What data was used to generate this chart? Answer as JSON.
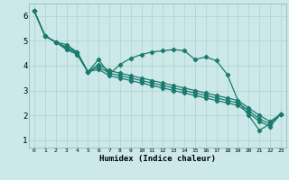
{
  "xlabel": "Humidex (Indice chaleur)",
  "bg_color": "#cce8e8",
  "line_color": "#1a7a6e",
  "grid_color": "#aad4cc",
  "xlim": [
    -0.5,
    23.5
  ],
  "ylim": [
    0.7,
    6.5
  ],
  "xticks": [
    0,
    1,
    2,
    3,
    4,
    5,
    6,
    7,
    8,
    9,
    10,
    11,
    12,
    13,
    14,
    15,
    16,
    17,
    18,
    19,
    20,
    21,
    22,
    23
  ],
  "yticks": [
    1,
    2,
    3,
    4,
    5,
    6
  ],
  "line_zigzag": [
    6.2,
    5.2,
    4.95,
    4.85,
    4.55,
    3.75,
    4.25,
    3.65,
    4.05,
    4.3,
    4.45,
    4.55,
    4.6,
    4.65,
    4.6,
    4.25,
    4.35,
    4.2,
    3.65,
    2.6,
    2.0,
    1.4,
    1.65,
    2.05
  ],
  "line_straight1": [
    6.2,
    5.2,
    4.95,
    4.75,
    4.55,
    3.75,
    4.05,
    3.8,
    3.7,
    3.6,
    3.5,
    3.4,
    3.3,
    3.2,
    3.1,
    3.0,
    2.9,
    2.8,
    2.7,
    2.6,
    2.3,
    2.0,
    1.75,
    2.05
  ],
  "line_straight2": [
    6.2,
    5.2,
    4.95,
    4.7,
    4.5,
    3.75,
    3.95,
    3.7,
    3.6,
    3.5,
    3.4,
    3.3,
    3.2,
    3.1,
    3.0,
    2.9,
    2.8,
    2.7,
    2.6,
    2.5,
    2.2,
    1.85,
    1.65,
    2.05
  ],
  "line_straight3": [
    6.2,
    5.2,
    4.95,
    4.65,
    4.45,
    3.75,
    3.85,
    3.6,
    3.5,
    3.4,
    3.3,
    3.2,
    3.1,
    3.0,
    2.9,
    2.8,
    2.7,
    2.6,
    2.5,
    2.4,
    2.1,
    1.75,
    1.55,
    2.05
  ]
}
